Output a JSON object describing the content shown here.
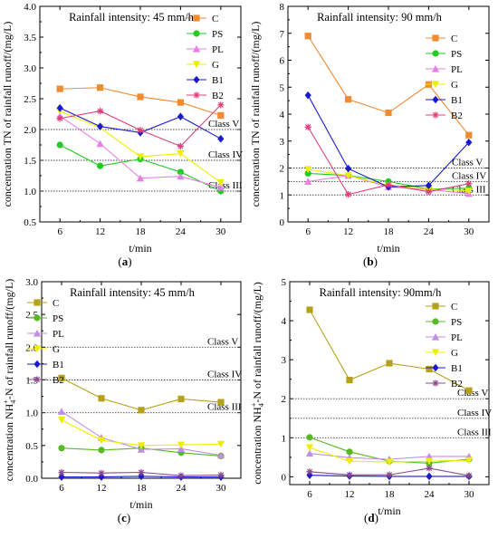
{
  "chart_data": [
    {
      "type": "line",
      "panel": "(a)",
      "title": "Rainfall intensity: 45 mm/h",
      "xlabel": "t/min",
      "ylabel": "concentration TN of rainfall runoff/(mg/L)",
      "x": [
        6,
        12,
        18,
        24,
        30
      ],
      "xlim": [
        3,
        33
      ],
      "ylim": [
        0.5,
        4.0
      ],
      "yticks": [
        "0.5",
        "1.0",
        "1.5",
        "2.0",
        "2.5",
        "3.0",
        "3.5",
        "4.0"
      ],
      "ytick_values": [
        0.5,
        1.0,
        1.5,
        2.0,
        2.5,
        3.0,
        3.5,
        4.0
      ],
      "thresholds": [
        {
          "label": "Class V",
          "value": 2.0
        },
        {
          "label": "Class IV",
          "value": 1.5
        },
        {
          "label": "Class III",
          "value": 1.0
        }
      ],
      "legend_position": "top-right",
      "series": [
        {
          "name": "C",
          "color": "#F28A30",
          "marker": "square",
          "values": [
            2.66,
            2.68,
            2.53,
            2.44,
            2.23
          ]
        },
        {
          "name": "PS",
          "color": "#22CC22",
          "marker": "circle",
          "values": [
            1.75,
            1.41,
            1.52,
            1.31,
            1.0
          ]
        },
        {
          "name": "PL",
          "color": "#E680E6",
          "marker": "triangle",
          "values": [
            2.22,
            1.77,
            1.21,
            1.24,
            1.06
          ]
        },
        {
          "name": "G",
          "color": "#EEEE00",
          "marker": "triangle-down",
          "values": [
            2.3,
            2.03,
            1.56,
            1.61,
            1.14
          ]
        },
        {
          "name": "B1",
          "color": "#1A1ACC",
          "marker": "diamond",
          "values": [
            2.35,
            2.05,
            1.95,
            2.21,
            1.85
          ]
        },
        {
          "name": "B2",
          "color": "#E0407A",
          "marker": "star",
          "values": [
            2.18,
            2.3,
            1.99,
            1.73,
            2.4
          ]
        }
      ]
    },
    {
      "type": "line",
      "panel": "(b)",
      "title": "Rainfall intensity: 90 mm/h",
      "xlabel": "t/min",
      "ylabel": "concentration TN of rainfall runoff/(mg/L)",
      "x": [
        6,
        12,
        18,
        24,
        30
      ],
      "xlim": [
        3,
        33
      ],
      "ylim": [
        0,
        8
      ],
      "yticks": [
        "0",
        "1",
        "2",
        "3",
        "4",
        "5",
        "6",
        "7",
        "8"
      ],
      "ytick_values": [
        0,
        1,
        2,
        3,
        4,
        5,
        6,
        7,
        8
      ],
      "thresholds": [
        {
          "label": "Class V",
          "value": 2.0
        },
        {
          "label": "Class IV",
          "value": 1.5
        },
        {
          "label": "Class III",
          "value": 1.0
        }
      ],
      "legend_position": "top-right",
      "series": [
        {
          "name": "C",
          "color": "#F28A30",
          "marker": "square",
          "values": [
            6.9,
            4.55,
            4.05,
            5.1,
            3.22
          ]
        },
        {
          "name": "PS",
          "color": "#22CC22",
          "marker": "circle",
          "values": [
            1.8,
            1.72,
            1.5,
            1.22,
            1.25
          ]
        },
        {
          "name": "PL",
          "color": "#E680E6",
          "marker": "triangle",
          "values": [
            1.5,
            1.72,
            1.3,
            1.2,
            1.05
          ]
        },
        {
          "name": "G",
          "color": "#EEEE00",
          "marker": "triangle-down",
          "values": [
            1.95,
            1.72,
            1.35,
            1.22,
            1.15
          ]
        },
        {
          "name": "B1",
          "color": "#1A1ACC",
          "marker": "diamond",
          "values": [
            4.7,
            1.98,
            1.3,
            1.35,
            2.95
          ]
        },
        {
          "name": "B2",
          "color": "#E0407A",
          "marker": "star",
          "values": [
            3.52,
            1.02,
            1.38,
            1.12,
            1.42
          ]
        }
      ]
    },
    {
      "type": "line",
      "panel": "(c)",
      "title": "Rainfall intensity: 45 mm/h",
      "xlabel": "t/min",
      "ylabel_prefix": "concentration NH",
      "ylabel_sub": "4",
      "ylabel_sup": "+",
      "ylabel_suffix": "-N of rainfall runoff/(mg/L)",
      "x": [
        6,
        12,
        18,
        24,
        30
      ],
      "xlim": [
        3,
        33
      ],
      "ylim": [
        0.0,
        3.0
      ],
      "yticks": [
        "0.0",
        "0.5",
        "1.0",
        "1.5",
        "2.0",
        "2.5",
        "3.0"
      ],
      "ytick_values": [
        0.0,
        0.5,
        1.0,
        1.5,
        2.0,
        2.5,
        3.0
      ],
      "thresholds": [
        {
          "label": "Class V",
          "value": 2.0
        },
        {
          "label": "Class IV",
          "value": 1.5
        },
        {
          "label": "Class III",
          "value": 1.0
        }
      ],
      "legend_position": "top-left",
      "series": [
        {
          "name": "C",
          "color": "#B5A21A",
          "marker": "square",
          "values": [
            1.53,
            1.22,
            1.04,
            1.21,
            1.16
          ]
        },
        {
          "name": "PS",
          "color": "#55BB22",
          "marker": "circle",
          "values": [
            0.46,
            0.43,
            0.46,
            0.39,
            0.34
          ]
        },
        {
          "name": "PL",
          "color": "#C08FE0",
          "marker": "triangle",
          "values": [
            1.02,
            0.62,
            0.44,
            0.45,
            0.35
          ]
        },
        {
          "name": "G",
          "color": "#EEEE00",
          "marker": "triangle-down",
          "values": [
            0.89,
            0.58,
            0.5,
            0.51,
            0.52
          ]
        },
        {
          "name": "B1",
          "color": "#1A1ACC",
          "marker": "diamond",
          "values": [
            0.02,
            0.02,
            0.03,
            0.02,
            0.02
          ]
        },
        {
          "name": "B2",
          "color": "#8B4A8B",
          "marker": "star",
          "values": [
            0.09,
            0.08,
            0.09,
            0.04,
            0.05
          ]
        }
      ]
    },
    {
      "type": "line",
      "panel": "(d)",
      "title": "Rainfall intensity: 90mm/h",
      "xlabel": "t/min",
      "ylabel_prefix": "concentration NH",
      "ylabel_sub": "4",
      "ylabel_sup": "+",
      "ylabel_suffix": "-N of rainfall runoff/(mg/L)",
      "x": [
        6,
        12,
        18,
        24,
        30
      ],
      "xlim": [
        3,
        33
      ],
      "ylim": [
        -0.2,
        5
      ],
      "yticks": [
        "0",
        "1",
        "2",
        "3",
        "4",
        "5"
      ],
      "ytick_values": [
        0,
        1,
        2,
        3,
        4,
        5
      ],
      "thresholds": [
        {
          "label": "Class V",
          "value": 2.0
        },
        {
          "label": "Class IV",
          "value": 1.5
        },
        {
          "label": "Class III",
          "value": 1.0
        }
      ],
      "legend_position": "top-right",
      "series": [
        {
          "name": "C",
          "color": "#B5A21A",
          "marker": "square",
          "values": [
            4.28,
            2.48,
            2.91,
            2.76,
            2.21
          ]
        },
        {
          "name": "PS",
          "color": "#55BB22",
          "marker": "circle",
          "values": [
            1.01,
            0.64,
            0.4,
            0.35,
            0.45
          ]
        },
        {
          "name": "PL",
          "color": "#C08FE0",
          "marker": "triangle",
          "values": [
            0.6,
            0.49,
            0.45,
            0.52,
            0.52
          ]
        },
        {
          "name": "G",
          "color": "#EEEE00",
          "marker": "triangle-down",
          "values": [
            0.75,
            0.4,
            0.38,
            0.4,
            0.42
          ]
        },
        {
          "name": "B1",
          "color": "#1A1ACC",
          "marker": "diamond",
          "values": [
            0.04,
            0.02,
            0.01,
            0.01,
            0.01
          ]
        },
        {
          "name": "B2",
          "color": "#8B4A8B",
          "marker": "star",
          "values": [
            0.13,
            0.05,
            0.05,
            0.22,
            0.03
          ]
        }
      ]
    }
  ]
}
